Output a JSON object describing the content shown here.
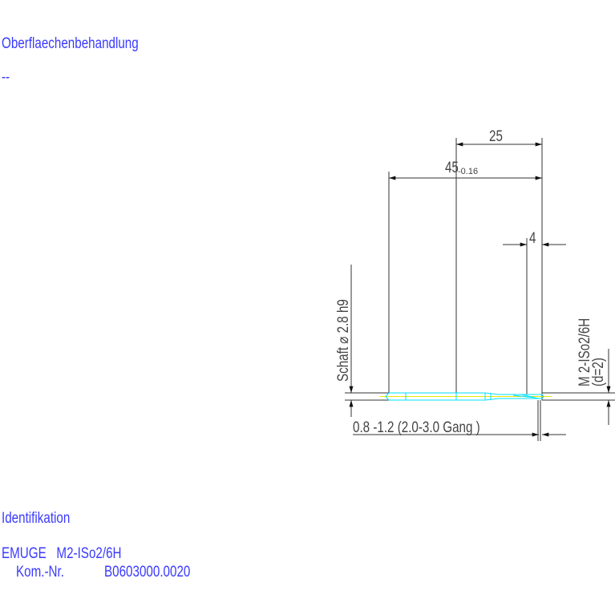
{
  "header": {
    "surface_label": "Oberflaechenbehandlung",
    "surface_value": "--"
  },
  "drawing": {
    "dim_25": "25",
    "dim_45": "45",
    "dim_45_tol": "-0.16",
    "dim_4": "4",
    "shank_label": "Schaft  ⌀ 2.8  h9",
    "thread_label": "M 2-ISo2/6H",
    "thread_d": "(d=2)",
    "chamfer_label": "0.8 -1.2 (2.0-3.0  Gang  )",
    "colors": {
      "outline": "#00e0ff",
      "axis": "#e8e800",
      "dimension": "#333333",
      "text": "#3a3aff"
    }
  },
  "footer": {
    "ident_label": "Identifikation",
    "product": "EMUGE   M2-ISo2/6H",
    "kom_label": "Kom.-Nr.",
    "kom_value": "B0603000.0020"
  }
}
